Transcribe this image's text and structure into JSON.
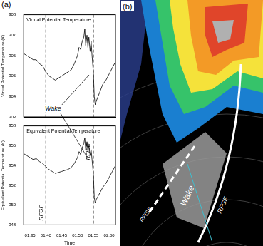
{
  "chart_data": [
    {
      "type": "line",
      "title": "Virtual Potential Temperature",
      "y_label": "Virtual Potential Temperature (K)",
      "x": [
        93,
        94,
        95,
        96,
        97,
        98,
        99,
        100,
        101,
        102,
        103,
        104,
        105,
        106,
        107,
        108,
        109,
        110,
        110.5,
        111,
        111.5,
        112,
        112.3,
        112.6,
        113,
        113.3,
        113.6,
        114,
        114.3,
        114.6,
        115,
        115.3,
        115.6,
        116,
        117,
        118,
        119,
        120,
        121,
        122
      ],
      "values": [
        306.1,
        306.0,
        305.9,
        305.8,
        305.8,
        305.6,
        305.5,
        305.2,
        305.0,
        304.9,
        304.8,
        304.9,
        305.0,
        305.1,
        305.2,
        305.3,
        305.6,
        306.0,
        306.4,
        306.3,
        306.7,
        306.9,
        307.3,
        306.5,
        307.0,
        306.4,
        306.9,
        306.2,
        306.7,
        306.0,
        305.2,
        304.0,
        303.6,
        303.8,
        304.2,
        304.6,
        304.8,
        305.1,
        305.4,
        305.7
      ],
      "color": "#000000",
      "xlim": [
        93,
        122
      ],
      "xticks": [
        {
          "value": 95,
          "label": "01:35"
        },
        {
          "value": 100,
          "label": "01:40"
        },
        {
          "value": 105,
          "label": "01:45"
        },
        {
          "value": 110,
          "label": "01:50"
        },
        {
          "value": 115,
          "label": "01:55"
        },
        {
          "value": 120,
          "label": "02:00"
        }
      ],
      "ylim": [
        303,
        308
      ],
      "yticks": [
        303,
        304,
        305,
        306,
        307,
        308
      ],
      "grid": false,
      "tick_labels": "y",
      "vlines": [
        {
          "x": 100
        },
        {
          "x": 115
        }
      ]
    },
    {
      "type": "line",
      "title": "Equivalent Potential Temperature",
      "y_label": "Equivalent Potential Temperature (K)",
      "x_label": "Time",
      "x": [
        93,
        94,
        95,
        96,
        97,
        98,
        99,
        100,
        101,
        102,
        103,
        104,
        105,
        106,
        107,
        108,
        109,
        110,
        110.5,
        111,
        111.5,
        112,
        112.3,
        112.6,
        113,
        113.3,
        113.6,
        114,
        114.3,
        114.6,
        115,
        115.3,
        115.6,
        116,
        117,
        118,
        119,
        120,
        121,
        122
      ],
      "values": [
        355.2,
        355.0,
        354.8,
        354.6,
        354.7,
        354.4,
        354.2,
        353.9,
        353.6,
        353.4,
        353.2,
        353.3,
        353.4,
        353.5,
        353.6,
        353.8,
        354.2,
        354.8,
        355.4,
        355.1,
        355.8,
        356.2,
        356.8,
        355.6,
        356.4,
        355.4,
        356.0,
        355.0,
        355.6,
        354.6,
        353.2,
        350.8,
        350.2,
        350.6,
        351.2,
        351.8,
        352.2,
        352.8,
        353.4,
        354.0
      ],
      "color": "#000000",
      "xlim": [
        93,
        122
      ],
      "xticks": [
        {
          "value": 95,
          "label": "01:35"
        },
        {
          "value": 100,
          "label": "01:40"
        },
        {
          "value": 105,
          "label": "01:45"
        },
        {
          "value": 110,
          "label": "01:50"
        },
        {
          "value": 115,
          "label": "01:55"
        },
        {
          "value": 120,
          "label": "02:00"
        }
      ],
      "ylim": [
        348,
        358
      ],
      "yticks": [
        348,
        350,
        352,
        354,
        356,
        358
      ],
      "grid": false,
      "vlines": [
        {
          "x": 100,
          "label": "RFGF"
        },
        {
          "x": 115,
          "label": "RFISB"
        }
      ]
    }
  ],
  "figure": {
    "panel_a": {
      "label": "(a)",
      "annotation": "Wake"
    },
    "panel_b": {
      "label": "(b)",
      "annotations": [
        "RFISB",
        "Wake",
        "RFGF"
      ]
    }
  }
}
